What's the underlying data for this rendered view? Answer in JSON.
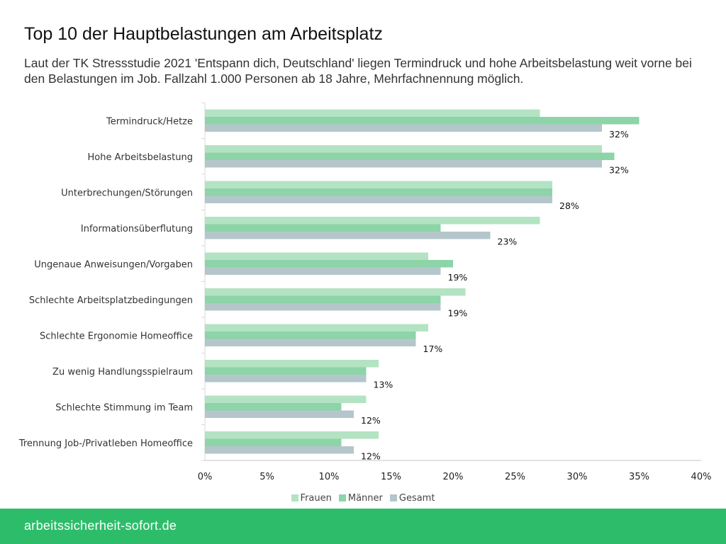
{
  "header": {
    "title": "Top 10 der Hauptbelastungen am Arbeitsplatz",
    "subtitle": "Laut der TK Stressstudie 2021 'Entspann dich, Deutschland' liegen Termindruck und hohe Arbeitsbelastung weit vorne bei den Belastungen im Job. Fallzahl 1.000 Personen ab 18 Jahre, Mehrfachnennung möglich."
  },
  "footer": {
    "site": "arbeitssicherheit-sofort.de"
  },
  "chart_data": {
    "type": "bar",
    "orientation": "horizontal",
    "title": "Top 10 der Hauptbelastungen am Arbeitsplatz",
    "xlabel": "",
    "ylabel": "",
    "xlim": [
      0,
      40
    ],
    "x_ticks": [
      "0%",
      "5%",
      "10%",
      "15%",
      "20%",
      "25%",
      "30%",
      "35%",
      "40%"
    ],
    "grid": false,
    "legend_position": "bottom",
    "categories": [
      "Termindruck/Hetze",
      "Hohe Arbeitsbelastung",
      "Unterbrechungen/Störungen",
      "Informationsüberflutung",
      "Ungenaue Anweisungen/Vorgaben",
      "Schlechte Arbeitsplatzbedingungen",
      "Schlechte Ergonomie Homeoffice",
      "Zu wenig Handlungsspielraum",
      "Schlechte Stimmung im Team",
      "Trennung Job-/Privatleben Homeoffice"
    ],
    "series": [
      {
        "name": "Frauen",
        "color": "#b3e3c2",
        "values": [
          27,
          32,
          28,
          27,
          18,
          21,
          18,
          14,
          13,
          14
        ]
      },
      {
        "name": "Männer",
        "color": "#8dd4a8",
        "values": [
          35,
          33,
          28,
          19,
          20,
          19,
          17,
          13,
          11,
          11
        ]
      },
      {
        "name": "Gesamt",
        "color": "#b5c6cb",
        "values": [
          32,
          32,
          28,
          23,
          19,
          19,
          17,
          13,
          12,
          12
        ],
        "data_labels": [
          "32%",
          "32%",
          "28%",
          "23%",
          "19%",
          "19%",
          "17%",
          "13%",
          "12%",
          "12%"
        ]
      }
    ]
  }
}
